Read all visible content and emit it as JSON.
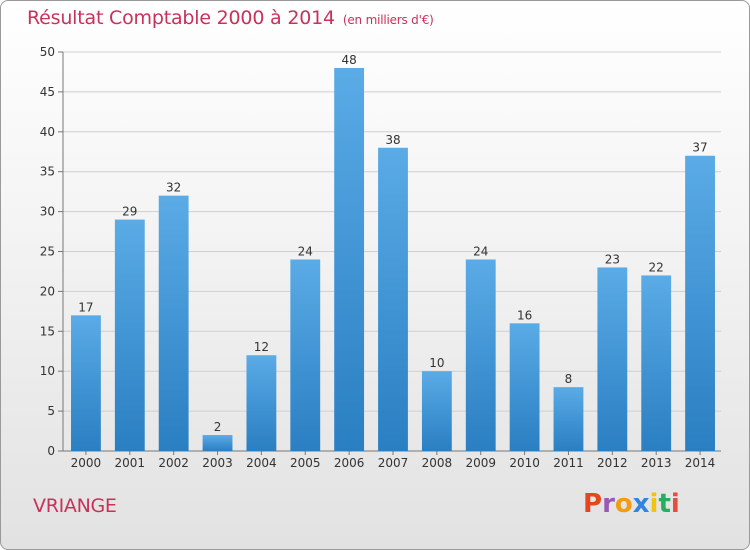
{
  "chart_title": "Résultat Comptable 2000 à 2014",
  "chart_subtitle": "(en milliers d'€)",
  "place_name": "VRIANGE",
  "logo_text": "Proxiti",
  "logo_colors": [
    "#e6451e",
    "#9b59b6",
    "#f39c12",
    "#2e86de",
    "#f1c40f",
    "#27ae60",
    "#e74c3c"
  ],
  "colors": {
    "bar_top": "#5aabe6",
    "bar_bottom": "#2a7fc2",
    "text": "#c8325a"
  },
  "chart_data": {
    "type": "bar",
    "title": "Résultat Comptable 2000 à 2014",
    "subtitle": "(en milliers d'€)",
    "categories": [
      "2000",
      "2001",
      "2002",
      "2003",
      "2004",
      "2005",
      "2006",
      "2007",
      "2008",
      "2009",
      "2010",
      "2011",
      "2012",
      "2013",
      "2014"
    ],
    "values": [
      17,
      29,
      32,
      2,
      12,
      24,
      48,
      38,
      10,
      24,
      16,
      8,
      23,
      22,
      37
    ],
    "yticks": [
      0,
      5,
      10,
      15,
      20,
      25,
      30,
      35,
      40,
      45,
      50
    ],
    "ylim": [
      0,
      50
    ],
    "grid": true,
    "xlabel": "",
    "ylabel": ""
  }
}
